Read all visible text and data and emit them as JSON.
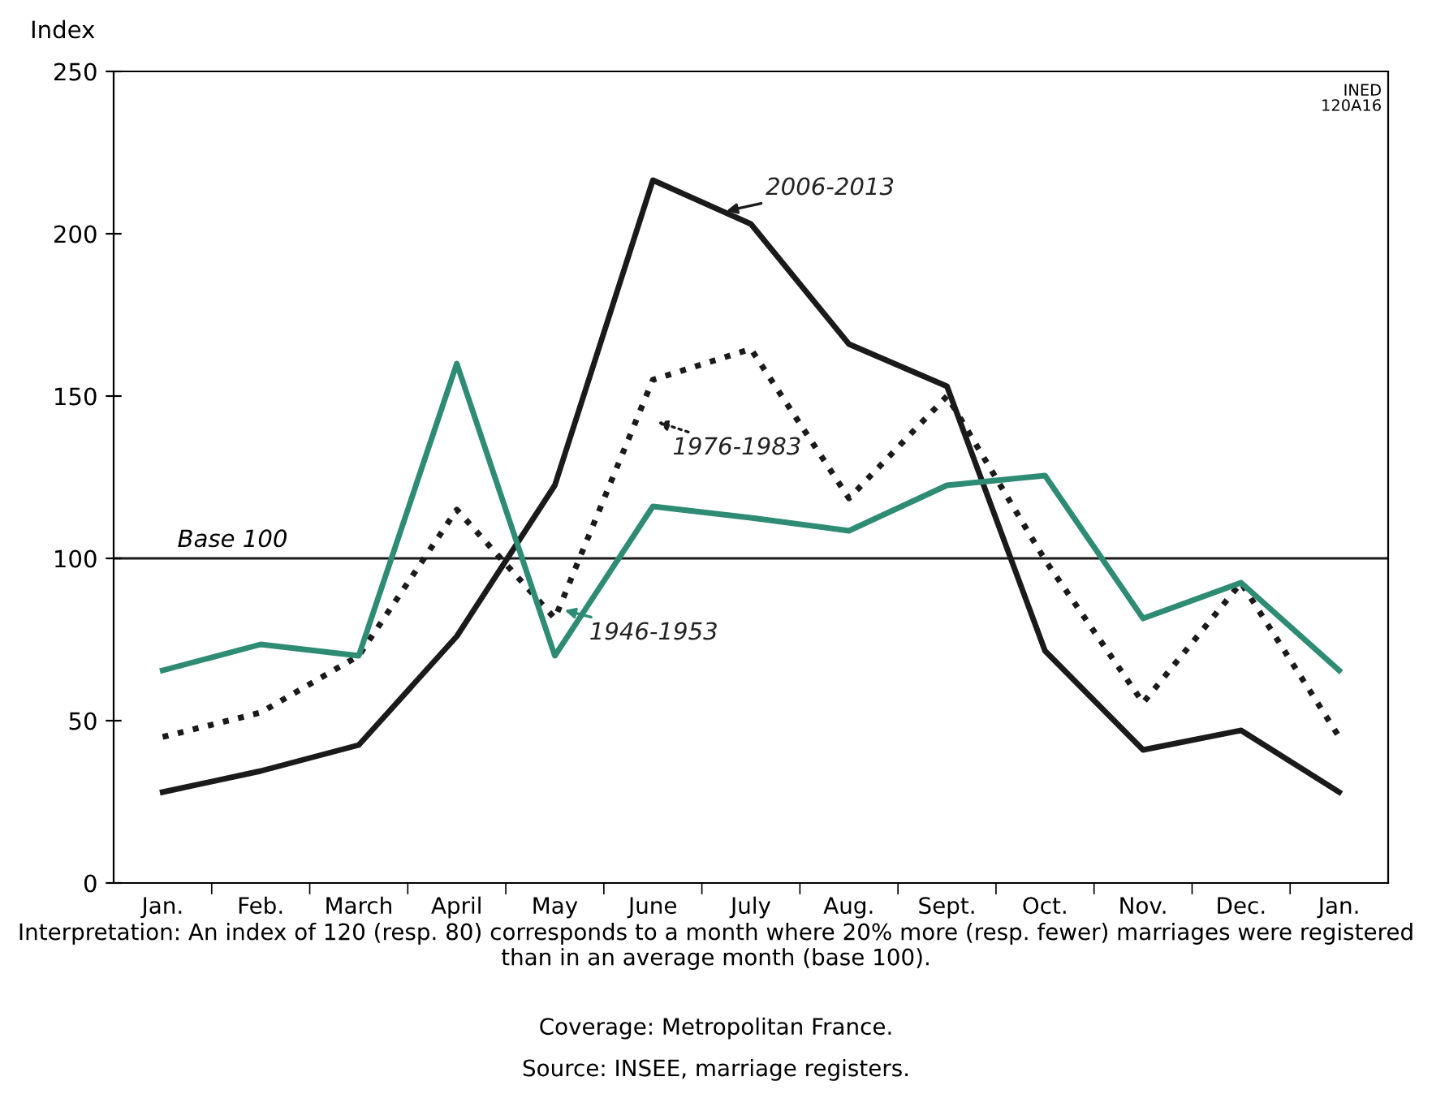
{
  "chart_data": {
    "type": "line",
    "ylabel": "Index",
    "categories": [
      "Jan.",
      "Feb.",
      "March",
      "April",
      "May",
      "June",
      "July",
      "Aug.",
      "Sept.",
      "Oct.",
      "Nov.",
      "Dec.",
      "Jan."
    ],
    "series": [
      {
        "name": "2006-2013",
        "color": "#1a1a1a",
        "line_style": "solid",
        "values": [
          28,
          34.5,
          42.5,
          76,
          122.5,
          216.5,
          203,
          166,
          153,
          71.5,
          41,
          47,
          28
        ]
      },
      {
        "name": "1976-1983",
        "color": "#1a1a1a",
        "line_style": "dotted",
        "values": [
          45,
          52.5,
          70,
          115,
          81.5,
          155,
          164.5,
          118.5,
          150,
          99.5,
          55.5,
          92.5,
          45
        ]
      },
      {
        "name": "1946-1953",
        "color": "#2e8b74",
        "line_style": "solid",
        "values": [
          65.5,
          73.5,
          70,
          160,
          70,
          116,
          112.5,
          108.5,
          122.5,
          125.5,
          81.5,
          92.5,
          65.5
        ]
      }
    ],
    "ylim": [
      0,
      250
    ],
    "yticks": [
      0,
      50,
      100,
      150,
      200,
      250
    ],
    "ref_lines": [
      {
        "axis": "y",
        "value": 100,
        "label": "Base 100",
        "color": "#1a1a1a"
      }
    ],
    "grid": false,
    "legend": "center",
    "marker": "none",
    "annotations": [
      "INED\n120A16",
      "Interpretation: An index of 120 (resp. 80) corresponds to a month where 20% more (resp. fewer) marriages were registered than in an average month (base 100).",
      "Coverage: Metropolitan France.",
      "Source: INSEE, marriage registers."
    ]
  }
}
